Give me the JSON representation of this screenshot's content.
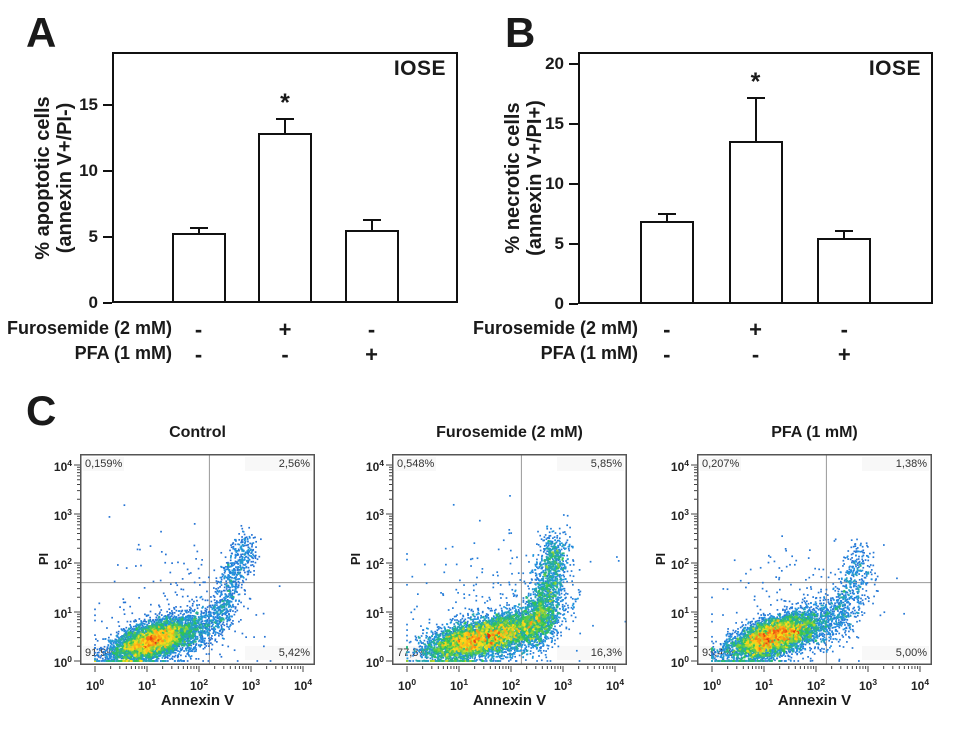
{
  "panels": {
    "c_letter": "C"
  },
  "colors": {
    "background": "#ffffff",
    "bar_fill": "#ffffff",
    "line_black": "#111111",
    "scatter_frame": "#555555",
    "quadrant_line": "#999999",
    "dot_colormap": [
      "#2a4fc4",
      "#2196e3",
      "#2ec456",
      "#ffe01a",
      "#fb8c17",
      "#e62e0e"
    ]
  },
  "chart_data": [
    {
      "id": "apoptotic_bar",
      "type": "bar",
      "panel_letter": "A",
      "corner_label": "IOSE",
      "ylabel_lines": [
        "% apoptotic cells",
        "(annexin V+/PI-)"
      ],
      "ylim": [
        0,
        19
      ],
      "yticks": [
        0,
        5,
        10,
        15
      ],
      "values": [
        5.3,
        12.9,
        5.55
      ],
      "errors": [
        0.35,
        1.05,
        0.75
      ],
      "significance": [
        "",
        "*",
        ""
      ],
      "condition_rows": [
        {
          "label": "Furosemide (2 mM)",
          "signs": [
            "-",
            "+",
            "-"
          ]
        },
        {
          "label": "PFA (1 mM)",
          "signs": [
            "-",
            "-",
            "+"
          ]
        }
      ]
    },
    {
      "id": "necrotic_bar",
      "type": "bar",
      "panel_letter": "B",
      "corner_label": "IOSE",
      "ylabel_lines": [
        "% necrotic cells",
        "(annexin V+/PI+)"
      ],
      "ylim": [
        0,
        21
      ],
      "yticks": [
        0,
        5,
        10,
        15,
        20
      ],
      "values": [
        6.9,
        13.6,
        5.5
      ],
      "errors": [
        0.6,
        3.6,
        0.55
      ],
      "significance": [
        "",
        "*",
        ""
      ],
      "condition_rows": [
        {
          "label": "Furosemide (2 mM)",
          "signs": [
            "-",
            "+",
            "-"
          ]
        },
        {
          "label": "PFA (1 mM)",
          "signs": [
            "-",
            "-",
            "+"
          ]
        }
      ]
    },
    {
      "id": "flow_control",
      "type": "scatter",
      "title": "Control",
      "xlabel": "Annexin V",
      "ylabel": "PI",
      "x_tick_exponents": [
        0,
        1,
        2,
        3,
        4
      ],
      "y_tick_exponents": [
        0,
        1,
        2,
        3,
        4
      ],
      "log_range": [
        0,
        4
      ],
      "quadrant_lines": {
        "x_log10": 2.2,
        "y_log10": 1.6
      },
      "quadrants": {
        "top_left": "0,159%",
        "top_right": "2,56%",
        "bottom_left": "91,9%",
        "bottom_right": "5,42%"
      },
      "seed": 11,
      "clusters": [
        {
          "kind": "gauss",
          "n": 5200,
          "cx": 1.12,
          "cy": 0.42,
          "sx": 0.4,
          "sy": 0.22,
          "corr": 0.55
        },
        {
          "kind": "gauss",
          "n": 550,
          "cx": 1.95,
          "cy": 0.62,
          "sx": 0.33,
          "sy": 0.3,
          "corr": 0.5
        },
        {
          "kind": "arm",
          "n": 650,
          "x0": 2.35,
          "y0": 0.75,
          "x1": 2.92,
          "y1": 2.45,
          "sx": 0.13,
          "sy": 0.18
        },
        {
          "kind": "gauss",
          "n": 170,
          "cx": 1.5,
          "cy": 1.05,
          "sx": 0.85,
          "sy": 0.75,
          "corr": 0.12
        }
      ]
    },
    {
      "id": "flow_furosemide",
      "type": "scatter",
      "title": "Furosemide (2 mM)",
      "xlabel": "Annexin V",
      "ylabel": "PI",
      "x_tick_exponents": [
        0,
        1,
        2,
        3,
        4
      ],
      "y_tick_exponents": [
        0,
        1,
        2,
        3,
        4
      ],
      "log_range": [
        0,
        4
      ],
      "quadrant_lines": {
        "x_log10": 2.2,
        "y_log10": 1.6
      },
      "quadrants": {
        "top_left": "0,548%",
        "top_right": "5,85%",
        "bottom_left": "77,3%",
        "bottom_right": "16,3%"
      },
      "seed": 29,
      "clusters": [
        {
          "kind": "gauss",
          "n": 4400,
          "cx": 1.35,
          "cy": 0.45,
          "sx": 0.5,
          "sy": 0.23,
          "corr": 0.5
        },
        {
          "kind": "gauss",
          "n": 1300,
          "cx": 2.25,
          "cy": 0.7,
          "sx": 0.38,
          "sy": 0.3,
          "corr": 0.55
        },
        {
          "kind": "arm",
          "n": 1500,
          "x0": 2.5,
          "y0": 0.45,
          "x1": 2.88,
          "y1": 2.4,
          "sx": 0.15,
          "sy": 0.22
        },
        {
          "kind": "gauss",
          "n": 200,
          "cx": 1.7,
          "cy": 1.2,
          "sx": 0.9,
          "sy": 0.8,
          "corr": 0.1
        }
      ]
    },
    {
      "id": "flow_pfa",
      "type": "scatter",
      "title": "PFA (1 mM)",
      "xlabel": "Annexin V",
      "ylabel": "PI",
      "x_tick_exponents": [
        0,
        1,
        2,
        3,
        4
      ],
      "y_tick_exponents": [
        0,
        1,
        2,
        3,
        4
      ],
      "log_range": [
        0,
        4
      ],
      "quadrant_lines": {
        "x_log10": 2.2,
        "y_log10": 1.6
      },
      "quadrants": {
        "top_left": "0,207%",
        "top_right": "1,38%",
        "bottom_left": "93,4%",
        "bottom_right": "5,00%"
      },
      "seed": 53,
      "clusters": [
        {
          "kind": "gauss",
          "n": 5100,
          "cx": 1.18,
          "cy": 0.5,
          "sx": 0.42,
          "sy": 0.23,
          "corr": 0.55
        },
        {
          "kind": "gauss",
          "n": 520,
          "cx": 2.0,
          "cy": 0.78,
          "sx": 0.4,
          "sy": 0.32,
          "corr": 0.5
        },
        {
          "kind": "arm",
          "n": 480,
          "x0": 2.35,
          "y0": 0.6,
          "x1": 2.92,
          "y1": 2.25,
          "sx": 0.15,
          "sy": 0.2
        },
        {
          "kind": "gauss",
          "n": 160,
          "cx": 1.6,
          "cy": 1.15,
          "sx": 0.85,
          "sy": 0.7,
          "corr": 0.1
        }
      ]
    }
  ]
}
